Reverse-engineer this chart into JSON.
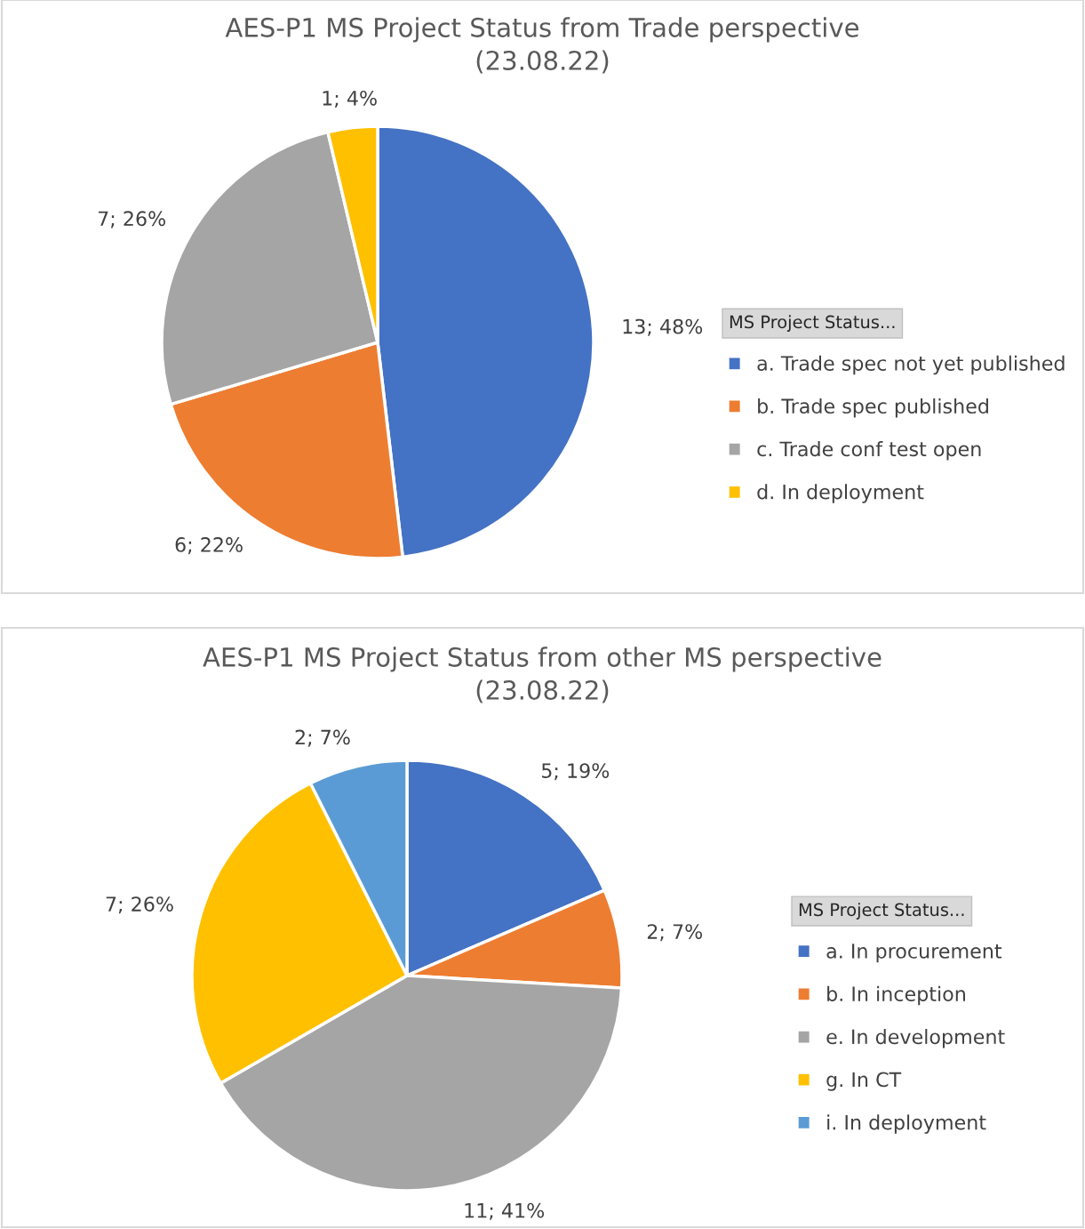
{
  "chart_data": [
    {
      "type": "pie",
      "title": "AES-P1 MS Project Status from Trade perspective\n(23.08.22)",
      "legend_title": "MS Project Status...",
      "legend": "right",
      "categories": [
        "a. Trade spec not yet published",
        "b. Trade spec published",
        "c. Trade conf test open",
        "d. In deployment"
      ],
      "values": [
        13,
        6,
        7,
        1
      ],
      "colors": [
        "#4472c4",
        "#ed7d31",
        "#a5a5a5",
        "#ffc000"
      ],
      "value_labels": [
        "13; 48%",
        "6; 22%",
        "7; 26%",
        "1; 4%"
      ]
    },
    {
      "type": "pie",
      "title": "AES-P1 MS Project Status from other MS perspective\n(23.08.22)",
      "legend_title": "MS Project Status...",
      "legend": "right",
      "categories": [
        "a. In procurement",
        "b. In inception",
        "e. In development",
        "g. In CT",
        "i. In deployment"
      ],
      "values": [
        5,
        2,
        11,
        7,
        2
      ],
      "colors": [
        "#4472c4",
        "#ed7d31",
        "#a5a5a5",
        "#ffc000",
        "#5b9bd5"
      ],
      "value_labels": [
        "5; 19%",
        "2; 7%",
        "11; 41%",
        "7; 26%",
        "2; 7%"
      ]
    }
  ]
}
